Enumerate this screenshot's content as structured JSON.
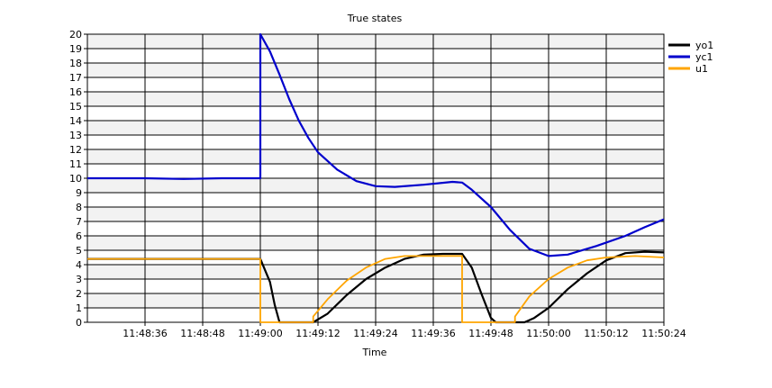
{
  "chart_data": {
    "type": "line",
    "title": "True states",
    "xlabel": "Time",
    "ylabel": "",
    "grid": true,
    "legend_position": "top-right",
    "x_start": "11:48:24",
    "x_end": "11:50:24",
    "xlim": [
      "11:48:24",
      "11:50:24"
    ],
    "ylim": [
      0,
      20
    ],
    "y_ticks": [
      0,
      1,
      2,
      3,
      4,
      5,
      6,
      7,
      8,
      9,
      10,
      11,
      12,
      13,
      14,
      15,
      16,
      17,
      18,
      19,
      20
    ],
    "x_ticks": [
      "11:48:36",
      "11:48:48",
      "11:49:00",
      "11:49:12",
      "11:49:24",
      "11:49:36",
      "11:49:48",
      "11:50:00",
      "11:50:12",
      "11:50:24"
    ],
    "series": [
      {
        "name": "yo1",
        "color": "#000000",
        "points": [
          [
            "11:48:24",
            4.4
          ],
          [
            "11:48:36",
            4.4
          ],
          [
            "11:48:48",
            4.4
          ],
          [
            "11:49:00",
            4.4
          ],
          [
            "11:49:02",
            2.8
          ],
          [
            "11:49:03",
            1.2
          ],
          [
            "11:49:04",
            0.0
          ],
          [
            "11:49:11",
            0.0
          ],
          [
            "11:49:14",
            0.6
          ],
          [
            "11:49:18",
            1.9
          ],
          [
            "11:49:22",
            3.0
          ],
          [
            "11:49:26",
            3.8
          ],
          [
            "11:49:30",
            4.4
          ],
          [
            "11:49:34",
            4.7
          ],
          [
            "11:49:38",
            4.75
          ],
          [
            "11:49:42",
            4.75
          ],
          [
            "11:49:44",
            3.8
          ],
          [
            "11:49:46",
            2.0
          ],
          [
            "11:49:48",
            0.3
          ],
          [
            "11:49:49",
            0.0
          ],
          [
            "11:49:55",
            0.0
          ],
          [
            "11:49:57",
            0.3
          ],
          [
            "11:50:00",
            1.0
          ],
          [
            "11:50:04",
            2.3
          ],
          [
            "11:50:08",
            3.4
          ],
          [
            "11:50:12",
            4.3
          ],
          [
            "11:50:16",
            4.8
          ],
          [
            "11:50:20",
            4.9
          ],
          [
            "11:50:24",
            4.85
          ]
        ]
      },
      {
        "name": "yc1",
        "color": "#0000cc",
        "points": [
          [
            "11:48:24",
            10.0
          ],
          [
            "11:48:36",
            10.0
          ],
          [
            "11:48:44",
            9.95
          ],
          [
            "11:48:52",
            10.0
          ],
          [
            "11:49:00",
            10.0
          ],
          [
            "11:49:00",
            20.0
          ],
          [
            "11:49:02",
            18.8
          ],
          [
            "11:49:04",
            17.2
          ],
          [
            "11:49:06",
            15.5
          ],
          [
            "11:49:08",
            14.0
          ],
          [
            "11:49:10",
            12.8
          ],
          [
            "11:49:12",
            11.8
          ],
          [
            "11:49:16",
            10.6
          ],
          [
            "11:49:20",
            9.8
          ],
          [
            "11:49:24",
            9.45
          ],
          [
            "11:49:28",
            9.4
          ],
          [
            "11:49:34",
            9.55
          ],
          [
            "11:49:40",
            9.75
          ],
          [
            "11:49:42",
            9.7
          ],
          [
            "11:49:44",
            9.2
          ],
          [
            "11:49:48",
            8.0
          ],
          [
            "11:49:52",
            6.4
          ],
          [
            "11:49:56",
            5.1
          ],
          [
            "11:50:00",
            4.6
          ],
          [
            "11:50:04",
            4.7
          ],
          [
            "11:50:10",
            5.3
          ],
          [
            "11:50:16",
            6.0
          ],
          [
            "11:50:20",
            6.6
          ],
          [
            "11:50:24",
            7.15
          ]
        ]
      },
      {
        "name": "u1",
        "color": "#ffa500",
        "points": [
          [
            "11:48:24",
            4.4
          ],
          [
            "11:48:36",
            4.4
          ],
          [
            "11:48:48",
            4.4
          ],
          [
            "11:49:00",
            4.4
          ],
          [
            "11:49:00",
            0.0
          ],
          [
            "11:49:11",
            0.0
          ],
          [
            "11:49:11",
            0.4
          ],
          [
            "11:49:14",
            1.6
          ],
          [
            "11:49:18",
            2.9
          ],
          [
            "11:49:22",
            3.8
          ],
          [
            "11:49:26",
            4.4
          ],
          [
            "11:49:30",
            4.6
          ],
          [
            "11:49:34",
            4.6
          ],
          [
            "11:49:42",
            4.6
          ],
          [
            "11:49:42",
            0.0
          ],
          [
            "11:49:53",
            0.0
          ],
          [
            "11:49:53",
            0.4
          ],
          [
            "11:49:56",
            1.8
          ],
          [
            "11:50:00",
            3.0
          ],
          [
            "11:50:04",
            3.8
          ],
          [
            "11:50:08",
            4.3
          ],
          [
            "11:50:12",
            4.5
          ],
          [
            "11:50:18",
            4.6
          ],
          [
            "11:50:24",
            4.5
          ]
        ]
      }
    ]
  }
}
